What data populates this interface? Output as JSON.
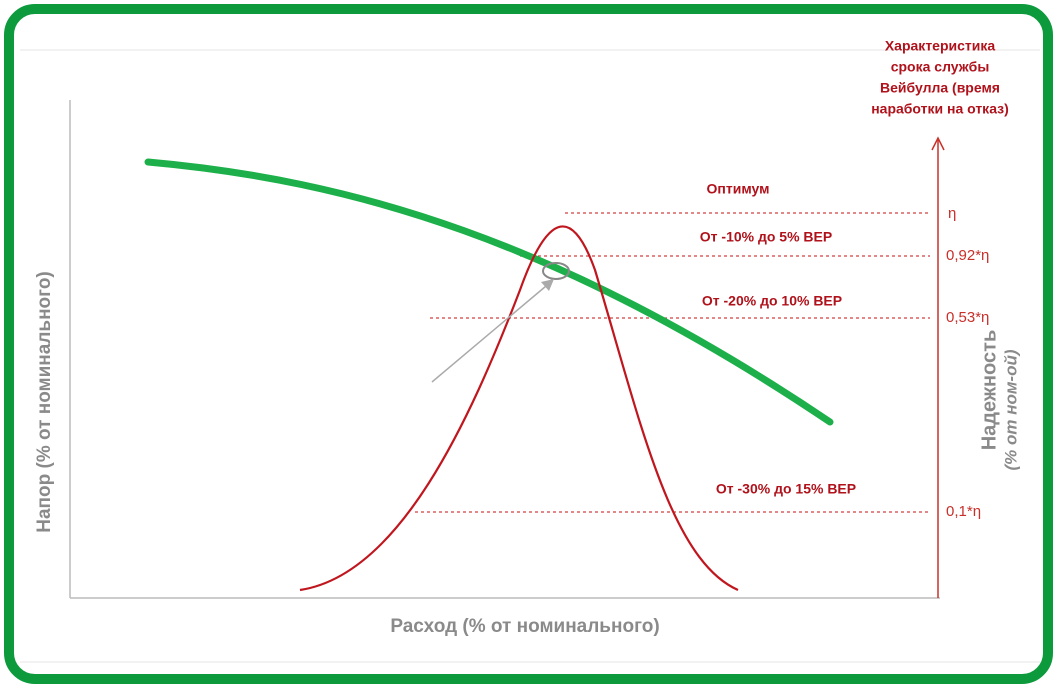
{
  "title_lines": [
    "Характеристика",
    "срока службы",
    "Вейбулла (время",
    "наработки на отказ)"
  ],
  "zones": [
    {
      "label": "Оптимум",
      "level": "η"
    },
    {
      "label": "От -10% до 5% BEP",
      "level": "0,92*η"
    },
    {
      "label": "От -20% до 10% BEP",
      "level": "0,53*η"
    },
    {
      "label": "От -30% до 15% BEP",
      "level": "0,1*η"
    }
  ],
  "y_axis_label": "Напор (% от номинального)",
  "x_axis_label": "Расход (% от номинального)",
  "right_axis_label": "Надежность",
  "right_axis_sublabel": "(% от ном-ой)"
}
